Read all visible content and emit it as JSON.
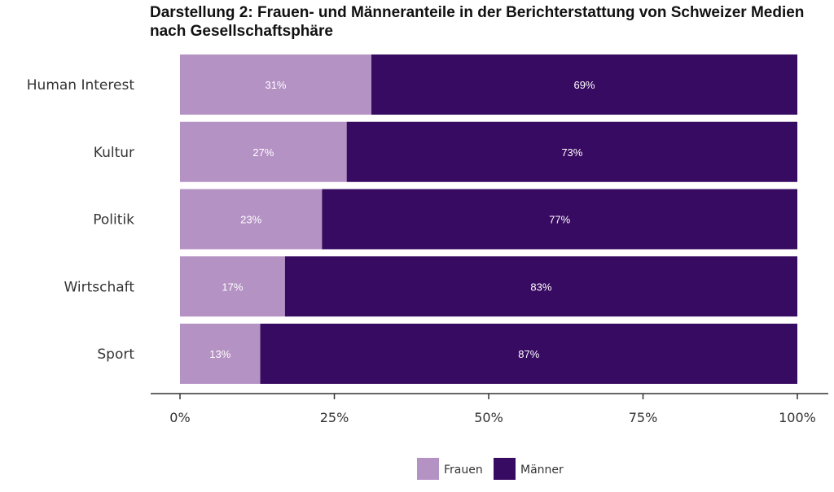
{
  "chart_data": {
    "type": "bar",
    "orientation": "horizontal",
    "stacked": true,
    "title": "Darstellung 2: Frauen- und Männeranteile in der Berichterstattung von Schweizer Medien nach Gesellschaftsphäre",
    "xlabel": "",
    "ylabel": "",
    "categories": [
      "Human Interest",
      "Kultur",
      "Politik",
      "Wirtschaft",
      "Sport"
    ],
    "series": [
      {
        "name": "Frauen",
        "values": [
          31,
          27,
          23,
          17,
          13
        ],
        "labels": [
          "31%",
          "27%",
          "23%",
          "17%",
          "13%"
        ],
        "color": "#b592c4"
      },
      {
        "name": "Männer",
        "values": [
          69,
          73,
          77,
          83,
          87
        ],
        "labels": [
          "69%",
          "73%",
          "77%",
          "83%",
          "87%"
        ],
        "color": "#380b62"
      }
    ],
    "xlim": [
      0,
      100
    ],
    "xticks": [
      0,
      25,
      50,
      75,
      100
    ],
    "xtick_labels": [
      "0%",
      "25%",
      "50%",
      "75%",
      "100%"
    ],
    "grid": false,
    "legend_position": "bottom"
  }
}
